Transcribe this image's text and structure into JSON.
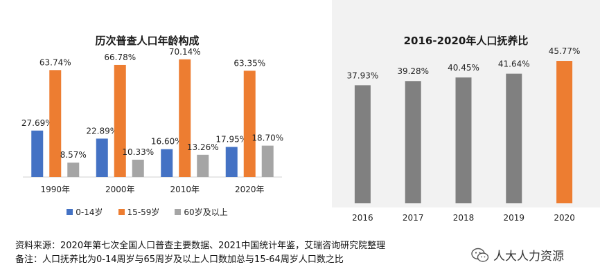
{
  "chart_data": [
    {
      "type": "bar",
      "title": "历次普查人口年龄构成",
      "categories": [
        "1990年",
        "2000年",
        "2010年",
        "2020年"
      ],
      "series": [
        {
          "name": "0-14岁",
          "color": "#4472c4",
          "values": [
            27.69,
            22.89,
            16.6,
            17.95
          ],
          "labels": [
            "27.69%",
            "22.89%",
            "16.60%",
            "17.95%"
          ]
        },
        {
          "name": "15-59岁",
          "color": "#ed7d31",
          "values": [
            63.74,
            66.78,
            70.14,
            63.35
          ],
          "labels": [
            "63.74%",
            "66.78%",
            "70.14%",
            "63.35%"
          ]
        },
        {
          "name": "60岁及以上",
          "color": "#a5a5a5",
          "values": [
            8.57,
            10.33,
            13.26,
            18.7
          ],
          "labels": [
            "8.57%",
            "10.33%",
            "13.26%",
            "18.70%"
          ]
        }
      ],
      "ylim": [
        0,
        75
      ],
      "grid": false,
      "legend_position": "bottom"
    },
    {
      "type": "bar",
      "title": "2016-2020年人口抚养比",
      "categories": [
        "2016",
        "2017",
        "2018",
        "2019",
        "2020"
      ],
      "values": [
        37.93,
        39.28,
        40.45,
        41.64,
        45.77
      ],
      "labels": [
        "37.93%",
        "39.28%",
        "40.45%",
        "41.64%",
        "45.77%"
      ],
      "colors": [
        "#808080",
        "#808080",
        "#808080",
        "#808080",
        "#ed7d31"
      ],
      "ylim": [
        0,
        50
      ],
      "grid": false
    }
  ],
  "footnotes": {
    "source": "资料来源：2020年第七次全国人口普查主要数据、2021中国统计年鉴，艾瑞咨询研究院整理",
    "note": "备注：人口抚养比为0-14周岁与65周岁及以上人口数加总与15-64周岁人口数之比"
  },
  "watermark": {
    "text": "人大人力资源",
    "icon": "wechat-icon"
  }
}
